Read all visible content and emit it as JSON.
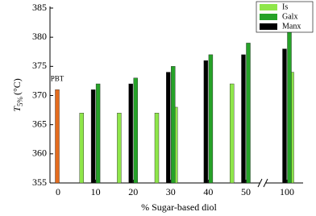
{
  "chart_data": {
    "type": "bar",
    "ylabel_symbol": "T",
    "ylabel_subscript": "5%",
    "ylabel_unit": "(°C)",
    "xlabel": "% Sugar-based diol",
    "xlim": [
      0,
      100
    ],
    "xticks": [
      0,
      10,
      20,
      30,
      40,
      50,
      100
    ],
    "x_break": true,
    "ylim": [
      355,
      385
    ],
    "yticks": [
      355,
      360,
      365,
      370,
      375,
      380,
      385
    ],
    "reference": {
      "name": "PBT",
      "x": 0,
      "value": 371,
      "color": "#e46c1e"
    },
    "series": [
      {
        "name": "Is",
        "color": "#8fe64a",
        "x": [
          5,
          15,
          25,
          30,
          45,
          100
        ],
        "values": [
          367,
          367,
          367,
          368,
          372,
          374
        ]
      },
      {
        "name": "Galx",
        "color": "#26a228",
        "x": [
          10,
          20,
          30,
          40,
          50,
          100
        ],
        "values": [
          372,
          373,
          375,
          377,
          379,
          382
        ]
      },
      {
        "name": "Manx",
        "color": "#000000",
        "x": [
          10,
          20,
          30,
          40,
          50,
          100
        ],
        "values": [
          371,
          372,
          374,
          376,
          377,
          378
        ]
      }
    ],
    "legend": "top-right"
  }
}
